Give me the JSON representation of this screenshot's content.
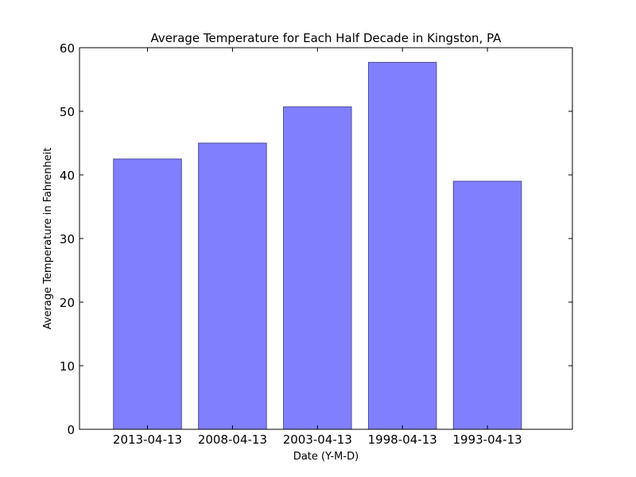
{
  "chart_data": {
    "type": "bar",
    "title": "Average Temperature for Each Half Decade in Kingston, PA",
    "xlabel": "Date (Y-M-D)",
    "ylabel": "Average Temperature in Fahrenheit",
    "categories": [
      "2013-04-13",
      "2008-04-13",
      "2003-04-13",
      "1998-04-13",
      "1993-04-13"
    ],
    "values": [
      42.5,
      45.0,
      50.7,
      57.7,
      39.0
    ],
    "ylim": [
      0,
      60
    ],
    "yticks": [
      0,
      10,
      20,
      30,
      40,
      50,
      60
    ],
    "grid": false,
    "bar_color": "#8080ff",
    "bar_edge_color": "#4d4d99"
  }
}
